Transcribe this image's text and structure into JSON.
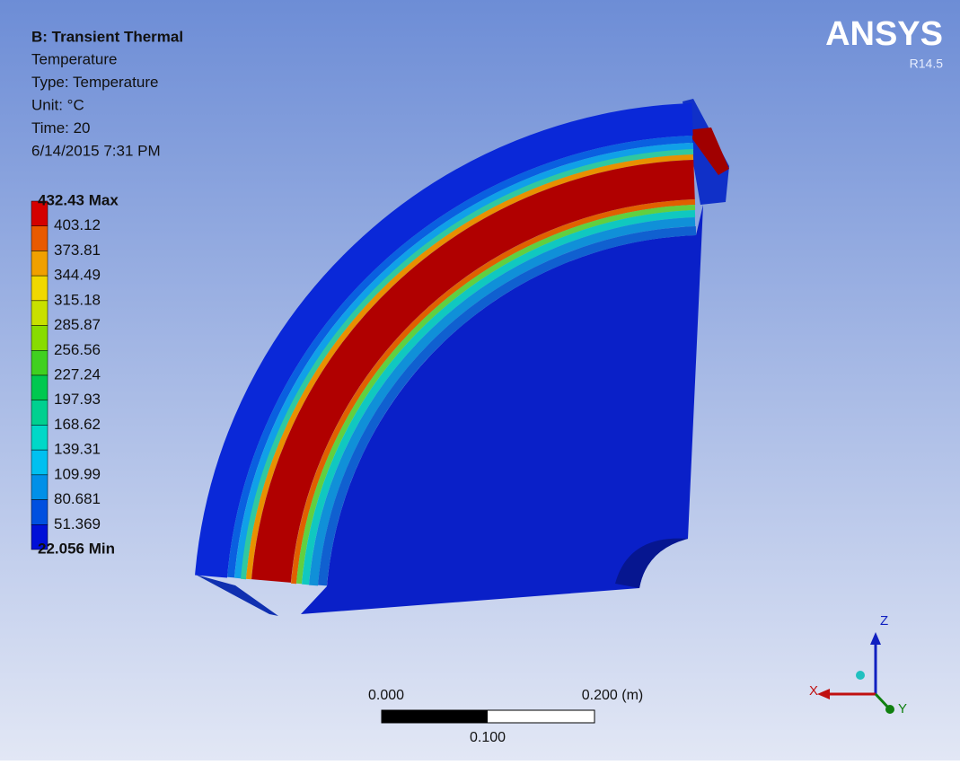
{
  "header": {
    "title": "B: Transient Thermal",
    "lines": [
      "Temperature",
      "Type: Temperature",
      "Unit: °C",
      "Time: 20",
      "6/14/2015 7:31 PM"
    ]
  },
  "legend": {
    "labels": [
      "432.43 Max",
      "403.12",
      "373.81",
      "344.49",
      "315.18",
      "285.87",
      "256.56",
      "227.24",
      "197.93",
      "168.62",
      "139.31",
      "109.99",
      "80.681",
      "51.369",
      "22.056 Min"
    ],
    "colors": [
      "#d40000",
      "#e85a00",
      "#f0a000",
      "#f0d800",
      "#c8e000",
      "#88dc00",
      "#40d020",
      "#00c850",
      "#00d090",
      "#00d8c8",
      "#00c0f0",
      "#0090e8",
      "#0050e0",
      "#0010d8"
    ]
  },
  "logo": {
    "name": "ANSYS",
    "version": "R14.5"
  },
  "scale_bar": {
    "labels": [
      "0.000",
      "0.200 (m)",
      "0.100"
    ]
  },
  "triad": {
    "axes": [
      "X",
      "Y",
      "Z"
    ]
  }
}
